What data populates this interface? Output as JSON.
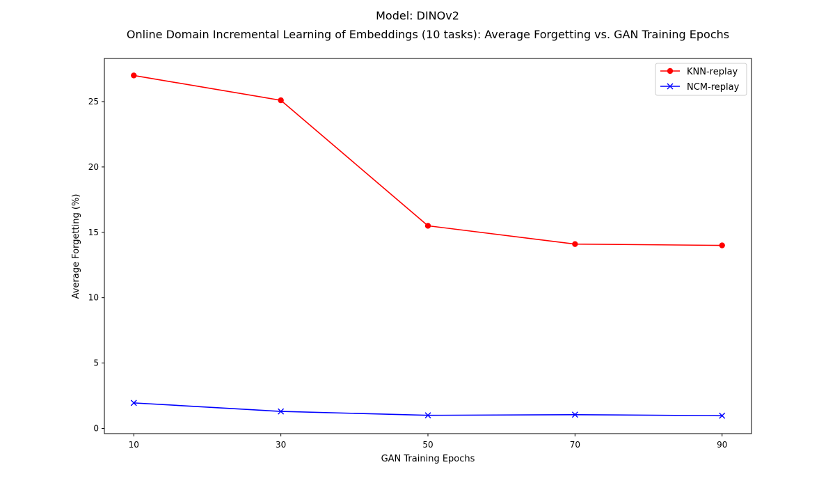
{
  "chart_data": {
    "type": "line",
    "suptitle": "Model: DINOv2",
    "title": "Online Domain Incremental Learning of Embeddings (10 tasks): Average Forgetting vs. GAN Training Epochs",
    "xlabel": "GAN Training Epochs",
    "ylabel": "Average Forgetting (%)",
    "x": [
      10,
      30,
      50,
      70,
      90
    ],
    "xticks": [
      "10",
      "30",
      "50",
      "70",
      "90"
    ],
    "yticks": [
      "0",
      "5",
      "10",
      "15",
      "20",
      "25"
    ],
    "xlim": [
      6,
      94
    ],
    "ylim": [
      -0.4,
      28.3
    ],
    "grid": false,
    "legend_position": "top-right",
    "series": [
      {
        "name": "KNN-replay",
        "values": [
          27.0,
          25.1,
          15.5,
          14.1,
          14.0
        ],
        "color": "#ff0000",
        "marker": "circle"
      },
      {
        "name": "NCM-replay",
        "values": [
          1.95,
          1.3,
          1.0,
          1.05,
          0.97
        ],
        "color": "#0000ff",
        "marker": "x"
      }
    ]
  }
}
